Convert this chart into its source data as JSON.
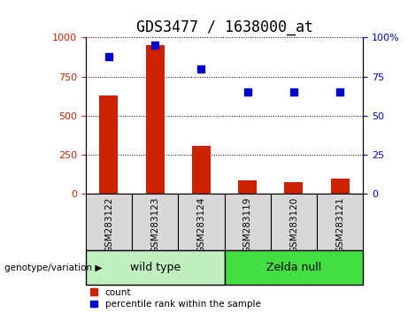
{
  "title": "GDS3477 / 1638000_at",
  "categories": [
    "GSM283122",
    "GSM283123",
    "GSM283124",
    "GSM283119",
    "GSM283120",
    "GSM283121"
  ],
  "bar_values": [
    630,
    950,
    310,
    85,
    75,
    100
  ],
  "percentile_values": [
    88,
    95,
    80,
    65,
    65,
    65
  ],
  "bar_color": "#cc2200",
  "dot_color": "#0000cc",
  "ylim_left": [
    0,
    1000
  ],
  "ylim_right": [
    0,
    100
  ],
  "yticks_left": [
    0,
    250,
    500,
    750,
    1000
  ],
  "yticks_right": [
    0,
    25,
    50,
    75,
    100
  ],
  "ytick_right_labels": [
    "0",
    "25",
    "50",
    "75",
    "100%"
  ],
  "grid_color": "black",
  "groups": [
    {
      "label": "wild type",
      "indices": [
        0,
        1,
        2
      ],
      "color": "#c0f0c0"
    },
    {
      "label": "Zelda null",
      "indices": [
        3,
        4,
        5
      ],
      "color": "#44dd44"
    }
  ],
  "group_label": "genotype/variation",
  "legend_count": "count",
  "legend_percentile": "percentile rank within the sample",
  "title_fontsize": 12,
  "tick_label_fontsize": 8,
  "bar_width": 0.4,
  "cell_bg": "#d8d8d8"
}
